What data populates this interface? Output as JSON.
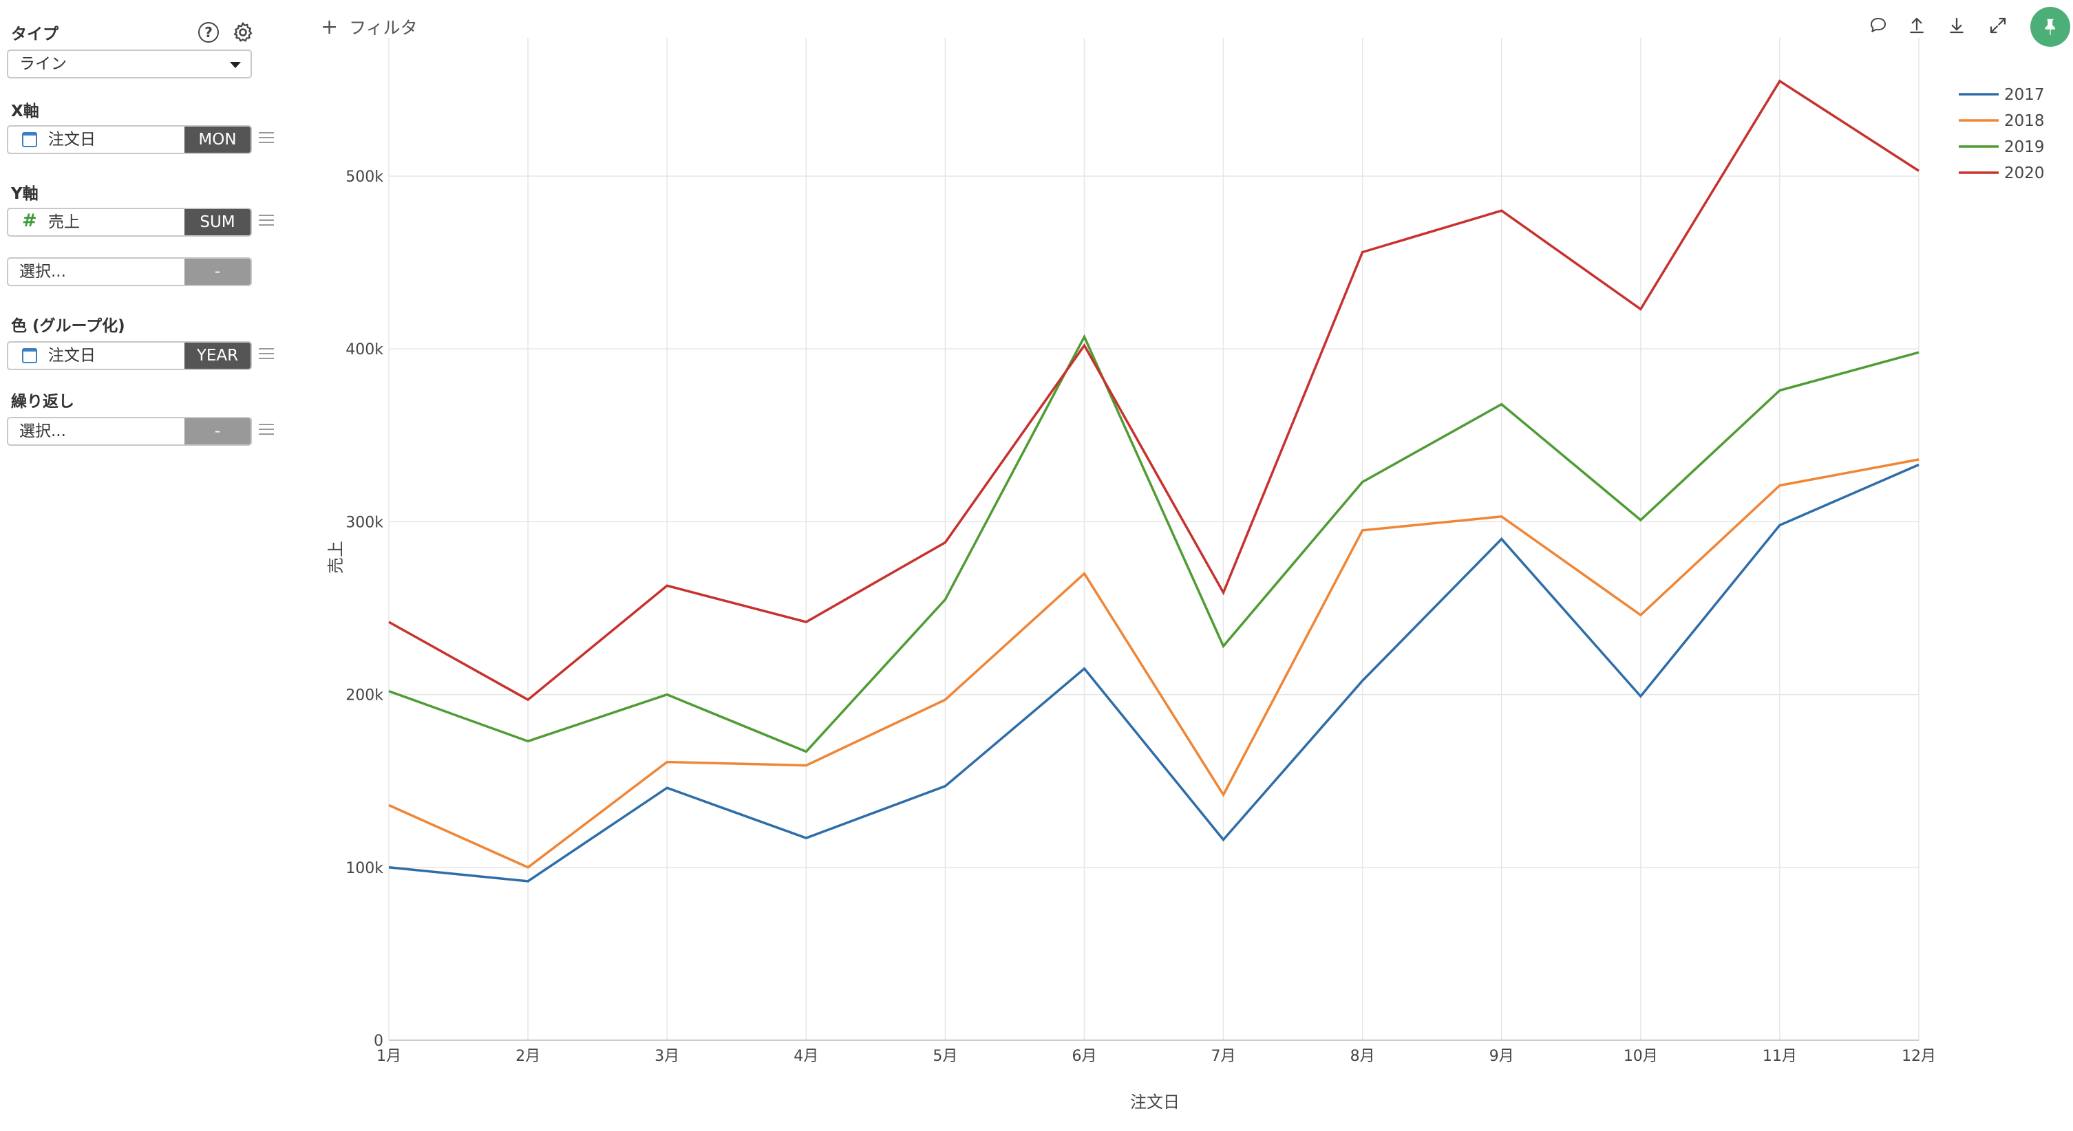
{
  "sidebar": {
    "type_label": "タイプ",
    "type_value": "ライン",
    "x_axis_label": "X軸",
    "x_field": {
      "name": "注文日",
      "agg": "MON",
      "icon": "calendar-icon"
    },
    "y_axis_label": "Y軸",
    "y_field": {
      "name": "売上",
      "agg": "SUM",
      "icon": "hash-icon"
    },
    "y_field2": {
      "placeholder": "選択...",
      "agg": "-"
    },
    "color_label": "色 (グループ化)",
    "color_field": {
      "name": "注文日",
      "agg": "YEAR",
      "icon": "calendar-icon"
    },
    "repeat_label": "繰り返し",
    "repeat_field": {
      "placeholder": "選択...",
      "agg": "-"
    }
  },
  "toolbar": {
    "filter_label": "フィルタ",
    "icons": [
      "comment-icon",
      "upload-icon",
      "download-icon",
      "expand-icon",
      "pin-icon"
    ],
    "pin_color": "#4caf78"
  },
  "chart_data": {
    "type": "line",
    "categories": [
      "1月",
      "2月",
      "3月",
      "4月",
      "5月",
      "6月",
      "7月",
      "8月",
      "9月",
      "10月",
      "11月",
      "12月"
    ],
    "series": [
      {
        "name": "2017",
        "color": "#2e6da8",
        "values": [
          100000,
          92000,
          146000,
          117000,
          147000,
          215000,
          116000,
          208000,
          290000,
          199000,
          298000,
          333000
        ]
      },
      {
        "name": "2018",
        "color": "#ef8535",
        "values": [
          136000,
          100000,
          161000,
          159000,
          197000,
          270000,
          142000,
          295000,
          303000,
          246000,
          321000,
          336000
        ]
      },
      {
        "name": "2019",
        "color": "#4f9c34",
        "values": [
          202000,
          173000,
          200000,
          167000,
          255000,
          407000,
          228000,
          323000,
          368000,
          301000,
          376000,
          398000
        ]
      },
      {
        "name": "2020",
        "color": "#c7322f",
        "values": [
          242000,
          197000,
          263000,
          242000,
          288000,
          402000,
          259000,
          456000,
          480000,
          423000,
          555000,
          503000
        ]
      }
    ],
    "xlabel": "注文日",
    "ylabel": "売上",
    "ylim": [
      0,
      580000
    ],
    "yticks": [
      0,
      100000,
      200000,
      300000,
      400000,
      500000
    ],
    "ytick_labels": [
      "0",
      "100k",
      "200k",
      "300k",
      "400k",
      "500k"
    ],
    "grid": true,
    "legend_position": "top-right"
  }
}
